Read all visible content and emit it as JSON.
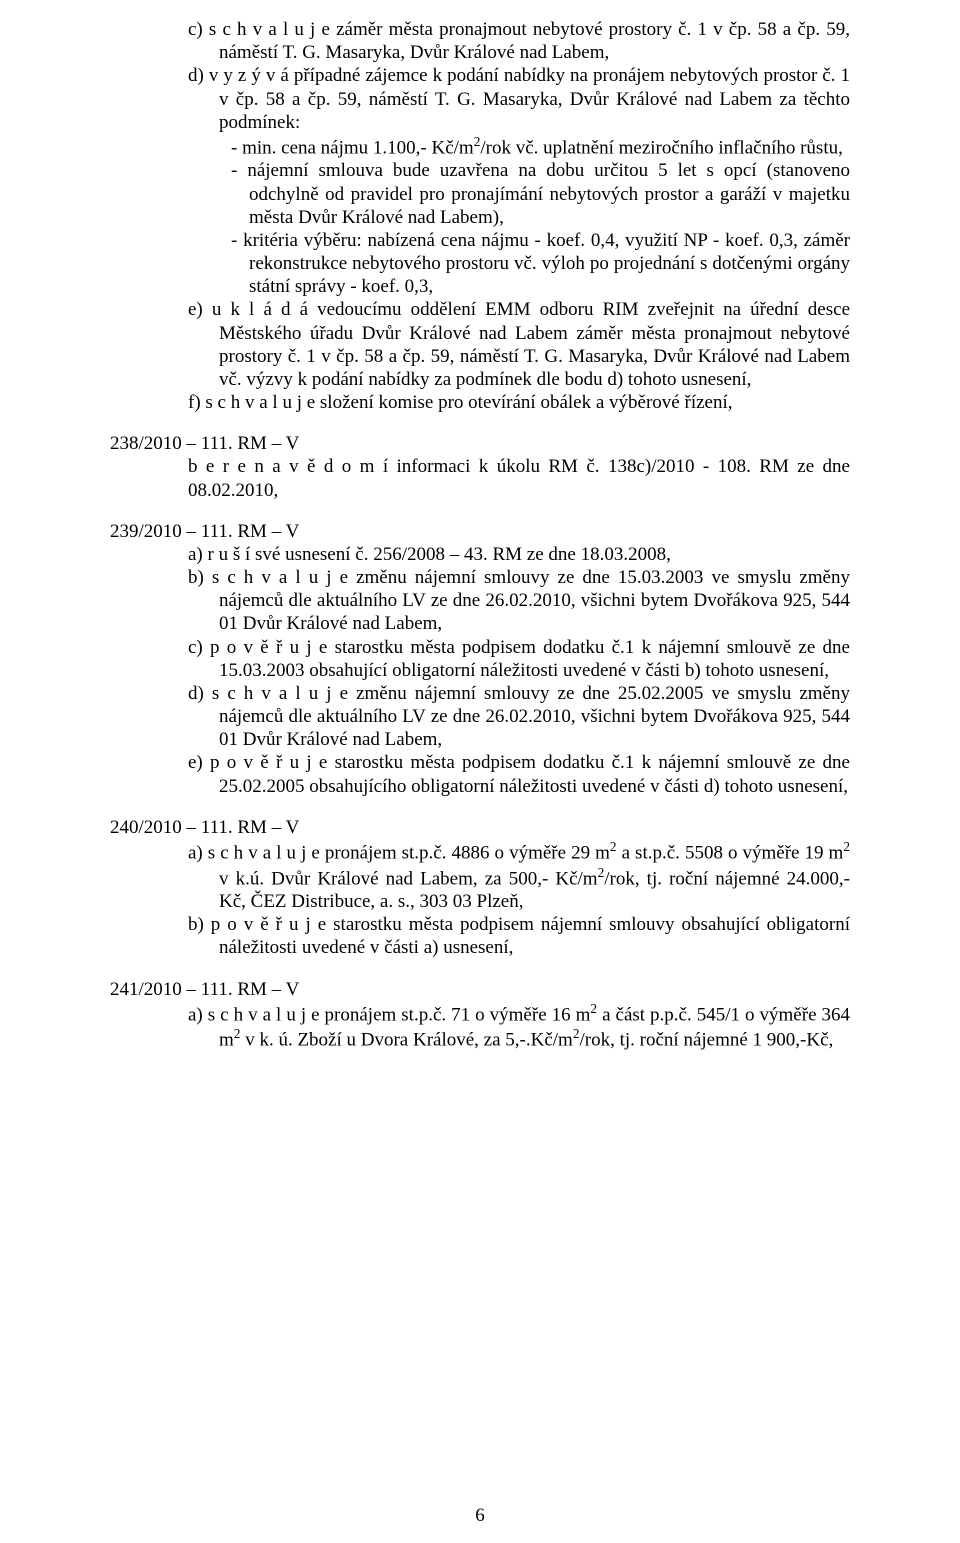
{
  "block1": {
    "c_line1": "c)  s c h v a l u j e  záměr města pronajmout nebytové prostory č. 1 v čp. 58 a čp. 59, náměstí T. G. Masaryka, Dvůr Králové nad Labem,",
    "d_line": "d)  v y z ý v á  případné zájemce k podání nabídky na pronájem nebytových prostor č. 1 v čp. 58 a čp. 59, náměstí T. G. Masaryka, Dvůr Králové nad Labem za těchto podmínek:",
    "bullet1_a": "-  min. cena nájmu 1.100,- Kč/m",
    "bullet1_b": "/rok vč. uplatnění meziročního inflačního růstu,",
    "bullet2": "-  nájemní smlouva bude uzavřena na dobu určitou 5 let s opcí (stanoveno odchylně od pravidel pro pronajímání nebytových prostor a garáží v majetku města Dvůr Králové nad Labem),",
    "bullet3": "-  kritéria výběru: nabízená cena nájmu - koef. 0,4, využití NP - koef. 0,3, záměr rekonstrukce nebytového prostoru vč. výloh po projednání s dotčenými orgány státní správy - koef. 0,3,",
    "e_line": "e)  u k l á d á  vedoucímu oddělení EMM odboru RIM zveřejnit na úřední desce Městského úřadu Dvůr Králové nad Labem záměr města pronajmout nebytové prostory č. 1 v čp. 58 a čp. 59, náměstí T. G. Masaryka, Dvůr Králové nad Labem vč. výzvy k podání nabídky za podmínek dle bodu d) tohoto usnesení,",
    "f_line": "f)  s c h v a l u j e  složení komise pro otevírání obálek a výběrové řízení,"
  },
  "res238": {
    "head": "238/2010 – 111. RM – V",
    "body": "b e r e   n a   v ě d o m í  informaci k úkolu RM č. 138c)/2010 - 108. RM ze dne 08.02.2010,"
  },
  "res239": {
    "head": "239/2010 – 111. RM – V",
    "a": "a)  r u š í  své usnesení č. 256/2008 – 43. RM ze dne 18.03.2008,",
    "b": "b)  s c h v a l u j e  změnu nájemní smlouvy ze dne 15.03.2003 ve smyslu změny nájemců dle aktuálního LV ze dne 26.02.2010, všichni bytem Dvořákova 925, 544 01 Dvůr Králové nad Labem,",
    "c": "c)  p o v ě ř u j e  starostku města podpisem dodatku č.1 k nájemní smlouvě ze dne 15.03.2003 obsahující obligatorní náležitosti uvedené v části b) tohoto usnesení,",
    "d": "d)  s c h v a l u j e  změnu nájemní smlouvy ze dne 25.02.2005 ve smyslu změny nájemců dle aktuálního LV ze dne 26.02.2010, všichni bytem Dvořákova 925, 544 01 Dvůr Králové nad Labem,",
    "e": "e)  p o v ě ř u j e  starostku města podpisem dodatku č.1 k nájemní smlouvě ze dne 25.02.2005 obsahujícího obligatorní náležitosti uvedené v části d) tohoto usnesení,"
  },
  "res240": {
    "head": "240/2010 – 111. RM – V",
    "a_1": "a)  s c h v a l u j e  pronájem st.p.č. 4886 o výměře 29 m",
    "a_2": " a st.p.č. 5508 o výměře 19 m",
    "a_3": " v k.ú. Dvůr Králové nad Labem, za 500,- Kč/m",
    "a_4": "/rok, tj. roční nájemné 24.000,- Kč, ČEZ Distribuce, a. s., 303 03 Plzeň,",
    "b": "b)  p o v ě ř u j e  starostku města podpisem nájemní smlouvy obsahující obligatorní náležitosti uvedené v části a) usnesení,"
  },
  "res241": {
    "head": "241/2010 – 111. RM – V",
    "a_1": "a)  s c h v a l u j e  pronájem st.p.č. 71 o výměře 16 m",
    "a_2": " a část  p.p.č.  545/1 o výměře 364 m",
    "a_3": "  v k. ú. Zboží u Dvora Králové, za 5,-.Kč/m",
    "a_4": "/rok, tj. roční nájemné 1 900,-Kč,"
  },
  "pagenum": "6",
  "sup2": "2"
}
